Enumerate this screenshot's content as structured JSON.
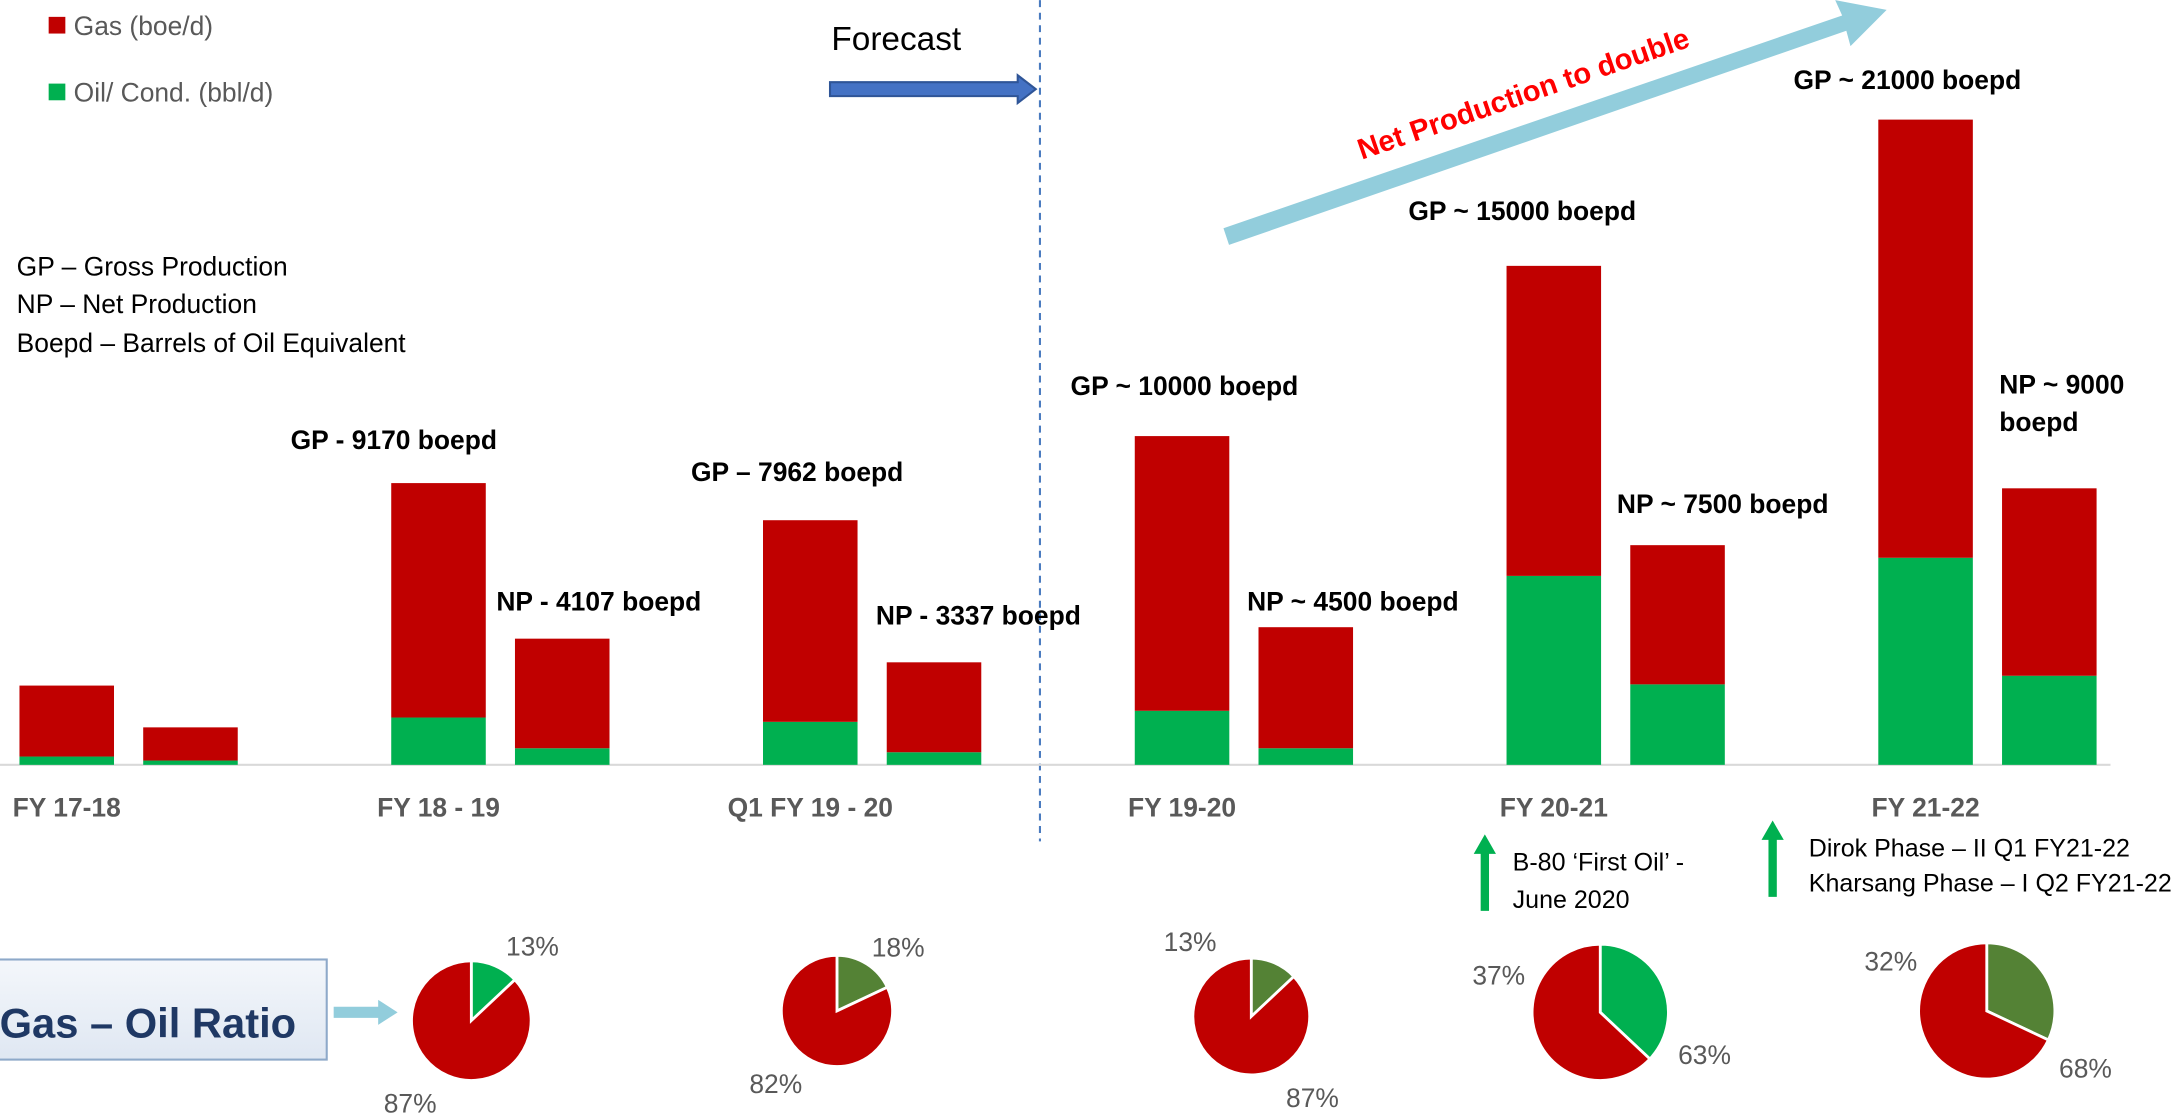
{
  "chart_data": [
    {
      "type": "bar",
      "stacked": true,
      "categories": [
        "FY 17-18",
        "FY 18 - 19",
        "Q1 FY 19 - 20",
        "FY 19-20",
        "FY 20-21",
        "FY 21-22"
      ],
      "series": [
        {
          "name": "Gas (boe/d)",
          "color": "#c00000",
          "values": [
            [
              2310,
              1080
            ],
            [
              7630,
              3567
            ],
            [
              6562,
              2927
            ],
            [
              8940,
              3940
            ],
            [
              10090,
              4530
            ],
            [
              14260,
              6100
            ]
          ]
        },
        {
          "name": "Oil/ Cond. (bbl/d)",
          "color": "#00b050",
          "values": [
            [
              270,
              140
            ],
            [
              1540,
              540
            ],
            [
              1400,
              410
            ],
            [
              1760,
              540
            ],
            [
              6150,
              2620
            ],
            [
              6740,
              2900
            ]
          ]
        }
      ],
      "ylim": [
        0,
        24000
      ],
      "bar_labels": [
        "GP - 9170 boepd",
        "NP - 4107 boepd",
        "GP – 7962 boepd",
        "NP - 3337 boepd",
        "GP ~ 10000 boepd",
        "NP ~ 4500 boepd",
        "GP ~ 15000 boepd",
        "NP ~ 7500 boepd",
        "GP ~ 21000 boepd",
        "NP ~ 9000 boepd"
      ],
      "forecast": "Forecast",
      "trend": "Net Production to double",
      "glossary": [
        "GP – Gross Production",
        "NP – Net Production",
        "Boepd – Barrels of Oil Equivalent"
      ],
      "milestones": [
        "B-80 ‘First Oil’ - June 2020",
        "Dirok Phase – II  Q1 FY21-22",
        "Kharsang Phase – I Q2 FY21-22"
      ]
    },
    {
      "type": "pie",
      "title": "Gas – Oil Ratio",
      "pies": [
        {
          "values": [
            87,
            13
          ],
          "value_labels": [
            "87%",
            "13%"
          ],
          "colors": [
            "#c00000",
            "#00b050"
          ]
        },
        {
          "values": [
            82,
            18
          ],
          "value_labels": [
            "82%",
            "18%"
          ],
          "colors": [
            "#c00000",
            "#548235"
          ]
        },
        {
          "values": [
            87,
            13
          ],
          "value_labels": [
            "87%",
            "13%"
          ],
          "colors": [
            "#c00000",
            "#548235"
          ]
        },
        {
          "values": [
            63,
            37
          ],
          "value_labels": [
            "63%",
            "37%"
          ],
          "colors": [
            "#c00000",
            "#00b050"
          ]
        },
        {
          "values": [
            68,
            32
          ],
          "value_labels": [
            "68%",
            "32%"
          ],
          "colors": [
            "#c00000",
            "#548235"
          ]
        }
      ]
    }
  ]
}
